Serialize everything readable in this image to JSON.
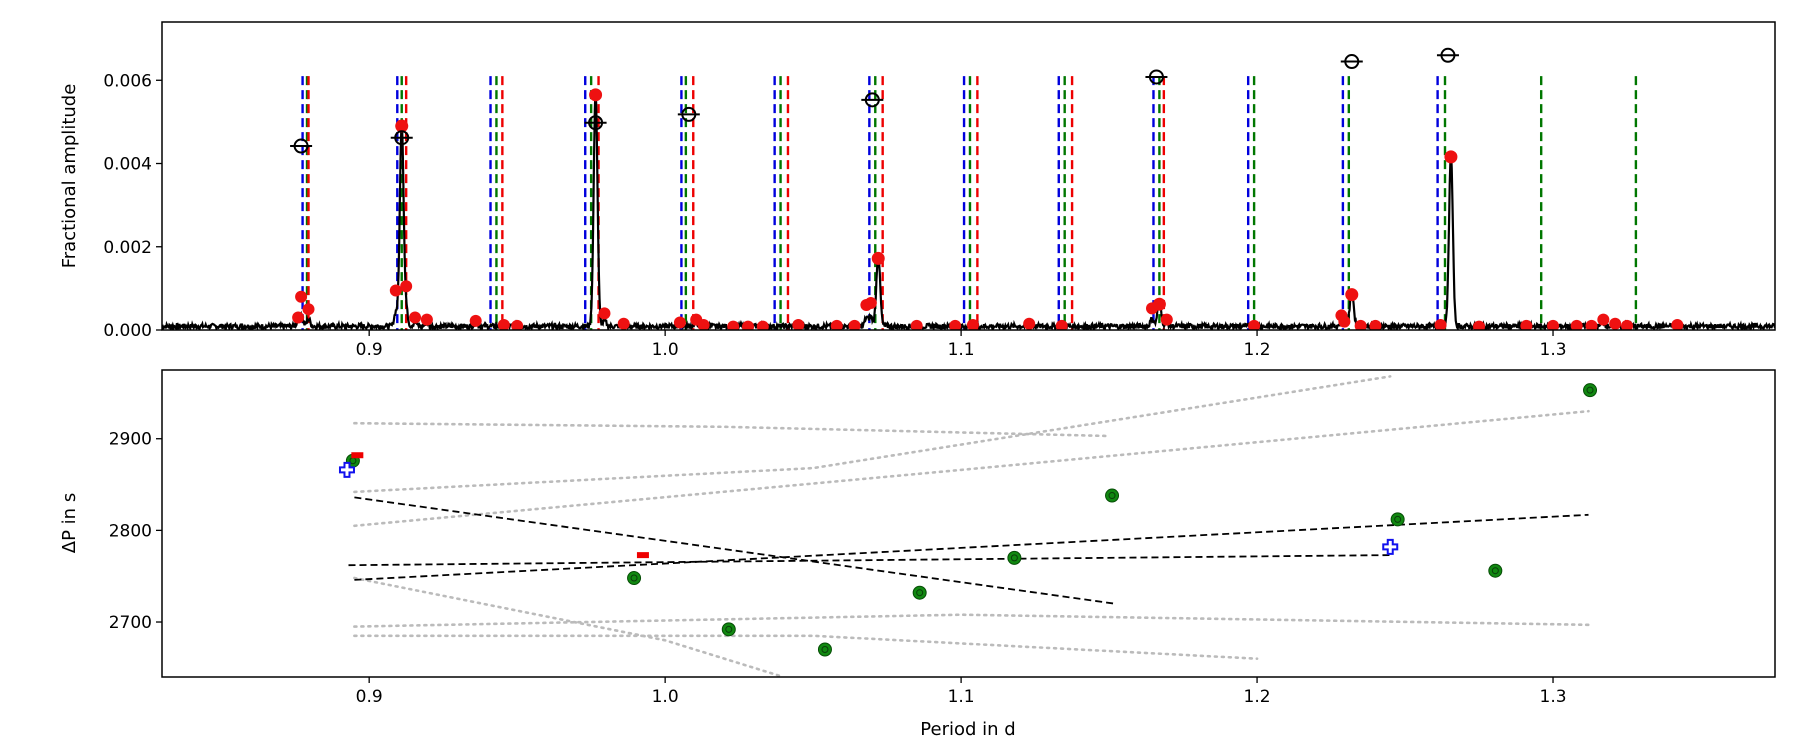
{
  "chart_data": [
    {
      "type": "line",
      "panel": "top",
      "ylabel": "Fractional amplitude",
      "xlim": [
        0.83,
        1.375
      ],
      "ylim": [
        0,
        0.0074
      ],
      "xticks": [
        "0.9",
        "1.0",
        "1.1",
        "1.2",
        "1.3"
      ],
      "yticks": [
        "0.000",
        "0.002",
        "0.004",
        "0.006"
      ],
      "colors": {
        "spectrum": "#000000",
        "blue": "#0000dd",
        "green": "#007700",
        "red": "#ee0000",
        "peak": "#ee1111"
      },
      "peaks": [
        {
          "x": 0.911,
          "y": 0.0049
        },
        {
          "x": 0.9765,
          "y": 0.00565
        },
        {
          "x": 1.072,
          "y": 0.00172
        },
        {
          "x": 1.167,
          "y": 0.00062
        },
        {
          "x": 1.232,
          "y": 0.00085
        },
        {
          "x": 1.2655,
          "y": 0.00416
        }
      ],
      "blue_lines": [
        0.8775,
        0.9095,
        0.941,
        0.973,
        1.0055,
        1.037,
        1.069,
        1.101,
        1.133,
        1.165,
        1.197,
        1.229,
        1.261
      ],
      "green_lines": [
        0.879,
        0.911,
        0.943,
        0.975,
        1.007,
        1.039,
        1.071,
        1.103,
        1.135,
        1.167,
        1.199,
        1.231,
        1.2635,
        1.296,
        1.328
      ],
      "red_lines": [
        0.8795,
        0.9125,
        0.945,
        0.9775,
        1.0095,
        1.0415,
        1.0735,
        1.1055,
        1.1375,
        1.1685
      ],
      "open_circles": [
        {
          "x": 0.877,
          "y": 0.00442
        },
        {
          "x": 0.911,
          "y": 0.00462
        },
        {
          "x": 0.9765,
          "y": 0.00498
        },
        {
          "x": 1.008,
          "y": 0.00518
        },
        {
          "x": 1.07,
          "y": 0.00553
        },
        {
          "x": 1.166,
          "y": 0.00608
        },
        {
          "x": 1.232,
          "y": 0.00645
        },
        {
          "x": 1.2645,
          "y": 0.0066
        }
      ],
      "small_peaks": [
        {
          "x": 0.877,
          "y": 0.0008
        },
        {
          "x": 0.8795,
          "y": 0.0005
        },
        {
          "x": 0.876,
          "y": 0.0003
        },
        {
          "x": 0.909,
          "y": 0.00095
        },
        {
          "x": 0.9125,
          "y": 0.00105
        },
        {
          "x": 0.9155,
          "y": 0.0003
        },
        {
          "x": 0.9195,
          "y": 0.00025
        },
        {
          "x": 0.936,
          "y": 0.00022
        },
        {
          "x": 0.9455,
          "y": 0.00012
        },
        {
          "x": 0.95,
          "y": 0.0001
        },
        {
          "x": 0.9795,
          "y": 0.0004
        },
        {
          "x": 0.986,
          "y": 0.00015
        },
        {
          "x": 1.005,
          "y": 0.00018
        },
        {
          "x": 1.0105,
          "y": 0.00025
        },
        {
          "x": 1.013,
          "y": 0.00012
        },
        {
          "x": 1.023,
          "y": 8e-05
        },
        {
          "x": 1.028,
          "y": 8e-05
        },
        {
          "x": 1.033,
          "y": 8e-05
        },
        {
          "x": 1.045,
          "y": 0.00012
        },
        {
          "x": 1.058,
          "y": 0.0001
        },
        {
          "x": 1.064,
          "y": 0.0001
        },
        {
          "x": 1.068,
          "y": 0.0006
        },
        {
          "x": 1.0695,
          "y": 0.00065
        },
        {
          "x": 1.085,
          "y": 0.0001
        },
        {
          "x": 1.098,
          "y": 0.0001
        },
        {
          "x": 1.104,
          "y": 0.00012
        },
        {
          "x": 1.123,
          "y": 0.00015
        },
        {
          "x": 1.134,
          "y": 0.0001
        },
        {
          "x": 1.1645,
          "y": 0.00052
        },
        {
          "x": 1.1695,
          "y": 0.00025
        },
        {
          "x": 1.199,
          "y": 0.0001
        },
        {
          "x": 1.2285,
          "y": 0.00035
        },
        {
          "x": 1.2295,
          "y": 0.0002
        },
        {
          "x": 1.235,
          "y": 0.0001
        },
        {
          "x": 1.24,
          "y": 0.0001
        },
        {
          "x": 1.262,
          "y": 0.00012
        },
        {
          "x": 1.275,
          "y": 8e-05
        },
        {
          "x": 1.291,
          "y": 0.0001
        },
        {
          "x": 1.3,
          "y": 0.0001
        },
        {
          "x": 1.308,
          "y": 0.0001
        },
        {
          "x": 1.313,
          "y": 0.0001
        },
        {
          "x": 1.317,
          "y": 0.00025
        },
        {
          "x": 1.321,
          "y": 0.00015
        },
        {
          "x": 1.325,
          "y": 0.0001
        },
        {
          "x": 1.342,
          "y": 0.00012
        }
      ]
    },
    {
      "type": "scatter",
      "panel": "bottom",
      "xlabel": "Period in d",
      "ylabel": "ΔP in s",
      "xlim": [
        0.83,
        1.375
      ],
      "ylim": [
        2640,
        2975
      ],
      "xticks": [
        "0.9",
        "1.0",
        "1.1",
        "1.2",
        "1.3"
      ],
      "yticks": [
        "2700",
        "2800",
        "2900"
      ],
      "colors": {
        "green_point": "#118811",
        "blue_plus": "#1111ee",
        "red_dash": "#ee0000",
        "dashed": "#000000",
        "dotted": "#bbbbbb"
      },
      "green_points": [
        {
          "x": 0.8945,
          "y": 2876
        },
        {
          "x": 0.9895,
          "y": 2748
        },
        {
          "x": 1.0215,
          "y": 2692
        },
        {
          "x": 1.054,
          "y": 2670
        },
        {
          "x": 1.086,
          "y": 2732
        },
        {
          "x": 1.118,
          "y": 2770
        },
        {
          "x": 1.151,
          "y": 2838
        },
        {
          "x": 1.2475,
          "y": 2812
        },
        {
          "x": 1.2805,
          "y": 2756
        },
        {
          "x": 1.3125,
          "y": 2953
        }
      ],
      "blue_plus_points": [
        {
          "x": 0.8925,
          "y": 2866
        },
        {
          "x": 1.245,
          "y": 2782
        }
      ],
      "red_dash_points": [
        {
          "x": 0.896,
          "y": 2882
        },
        {
          "x": 0.9925,
          "y": 2773
        }
      ],
      "dashed_lines": [
        [
          [
            0.895,
            2836
          ],
          [
            1.152,
            2720
          ]
        ],
        [
          [
            0.893,
            2762
          ],
          [
            1.245,
            2773
          ]
        ],
        [
          [
            0.895,
            2746
          ],
          [
            1.312,
            2817
          ]
        ]
      ],
      "dotted_lines": [
        [
          [
            0.895,
            2917
          ],
          [
            1.02,
            2913
          ],
          [
            1.15,
            2903
          ]
        ],
        [
          [
            0.895,
            2842
          ],
          [
            1.05,
            2868
          ],
          [
            1.245,
            2968
          ]
        ],
        [
          [
            0.895,
            2805
          ],
          [
            1.1,
            2866
          ],
          [
            1.312,
            2930
          ]
        ],
        [
          [
            0.895,
            2695
          ],
          [
            1.1,
            2708
          ],
          [
            1.312,
            2697
          ]
        ],
        [
          [
            0.895,
            2685
          ],
          [
            1.05,
            2685
          ],
          [
            1.2,
            2660
          ]
        ],
        [
          [
            0.895,
            2748
          ],
          [
            1.0,
            2680
          ],
          [
            1.04,
            2640
          ]
        ]
      ]
    }
  ]
}
